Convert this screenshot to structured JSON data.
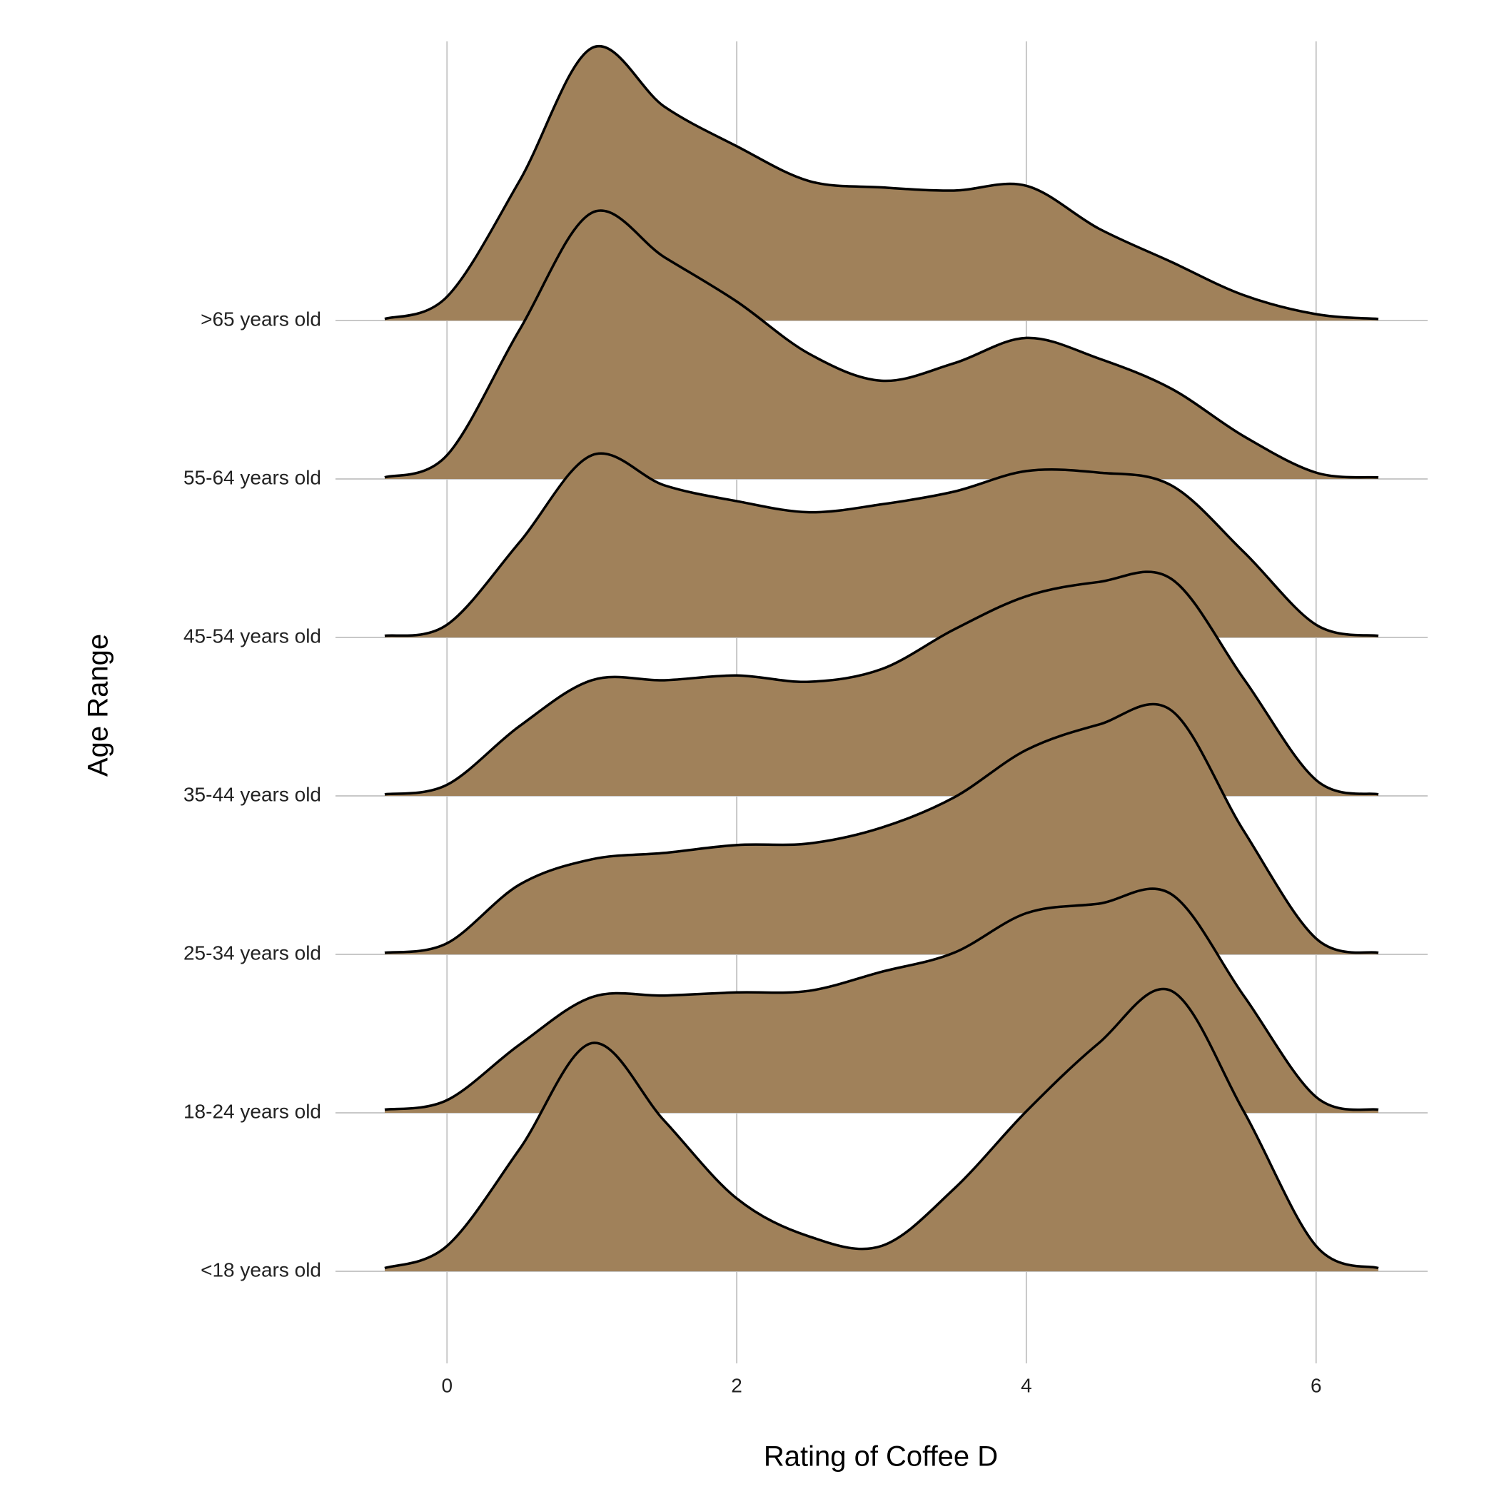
{
  "chart_data": {
    "type": "ridgeline",
    "xlabel": "Rating of Coffee D",
    "ylabel": "Age Range",
    "xlim": [
      -0.77,
      6.77
    ],
    "xticks": [
      0,
      2,
      4,
      6
    ],
    "grid": true,
    "categories": [
      "<18 years old",
      "18-24 years old",
      "25-34 years old",
      "35-44 years old",
      "45-54 years old",
      "55-64 years old",
      ">65 years old"
    ],
    "x": [
      -0.43,
      0,
      0.5,
      1,
      1.5,
      2,
      2.5,
      3,
      3.5,
      4,
      4.5,
      5,
      5.5,
      6,
      6.43
    ],
    "series": [
      {
        "name": "<18 years old",
        "color": "#a0815a",
        "values": [
          0.02,
          0.16,
          0.77,
          1.44,
          0.95,
          0.46,
          0.22,
          0.16,
          0.52,
          1.01,
          1.44,
          1.77,
          1.01,
          0.16,
          0.02
        ]
      },
      {
        "name": "18-24 years old",
        "color": "#a0815a",
        "values": [
          0.02,
          0.08,
          0.43,
          0.73,
          0.74,
          0.76,
          0.77,
          0.89,
          1.01,
          1.26,
          1.32,
          1.38,
          0.74,
          0.1,
          0.02
        ]
      },
      {
        "name": "25-34 years old",
        "color": "#a0815a",
        "values": [
          0.01,
          0.07,
          0.44,
          0.6,
          0.64,
          0.69,
          0.7,
          0.8,
          0.99,
          1.29,
          1.45,
          1.54,
          0.78,
          0.1,
          0.01
        ]
      },
      {
        "name": "35-44 years old",
        "color": "#a0815a",
        "values": [
          0.01,
          0.07,
          0.44,
          0.73,
          0.73,
          0.76,
          0.72,
          0.8,
          1.05,
          1.26,
          1.35,
          1.37,
          0.74,
          0.1,
          0.01
        ]
      },
      {
        "name": "45-54 years old",
        "color": "#a0815a",
        "values": [
          0.01,
          0.08,
          0.6,
          1.15,
          0.96,
          0.86,
          0.79,
          0.84,
          0.92,
          1.05,
          1.04,
          0.96,
          0.54,
          0.08,
          0.01
        ]
      },
      {
        "name": "55-64 years old",
        "color": "#a0815a",
        "values": [
          0.01,
          0.15,
          0.94,
          1.68,
          1.4,
          1.12,
          0.79,
          0.62,
          0.73,
          0.89,
          0.76,
          0.57,
          0.27,
          0.04,
          0.01
        ]
      },
      {
        "name": ">65 years old",
        "color": "#a0815a",
        "values": [
          0.01,
          0.15,
          0.88,
          1.72,
          1.35,
          1.1,
          0.88,
          0.84,
          0.82,
          0.85,
          0.58,
          0.37,
          0.16,
          0.04,
          0.01
        ]
      }
    ]
  }
}
